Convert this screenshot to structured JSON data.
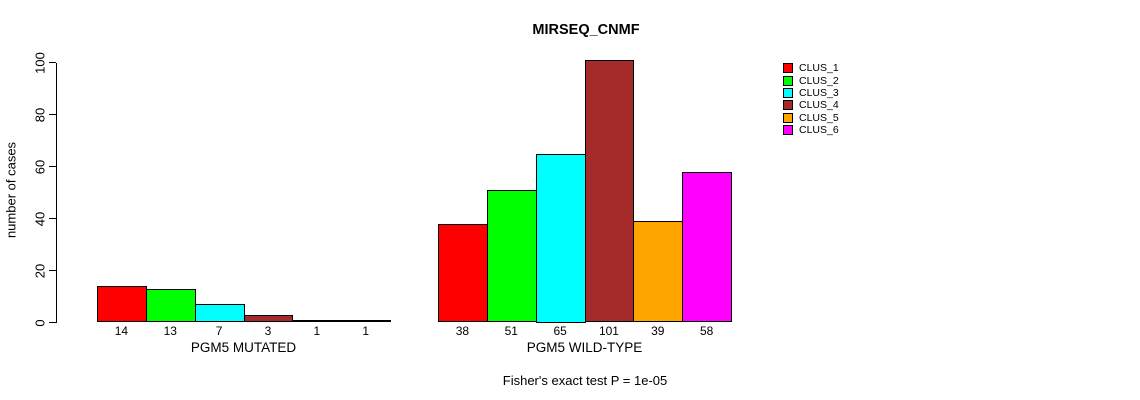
{
  "chart_data": {
    "type": "bar",
    "title": "MIRSEQ_CNMF",
    "ylabel": "number of cases",
    "subtitle": "Fisher's exact test P = 1e-05",
    "categories": [
      "PGM5 MUTATED",
      "PGM5 WILD-TYPE"
    ],
    "series": [
      {
        "name": "CLUS_1",
        "color": "#FF0000",
        "values": [
          14,
          38
        ]
      },
      {
        "name": "CLUS_2",
        "color": "#00FF00",
        "values": [
          13,
          51
        ]
      },
      {
        "name": "CLUS_3",
        "color": "#00FFFF",
        "values": [
          7,
          65
        ]
      },
      {
        "name": "CLUS_4",
        "color": "#A52A2A",
        "values": [
          3,
          101
        ]
      },
      {
        "name": "CLUS_5",
        "color": "#FFA500",
        "values": [
          1,
          39
        ]
      },
      {
        "name": "CLUS_6",
        "color": "#FF00FF",
        "values": [
          1,
          58
        ]
      }
    ],
    "bar_value_labels": {
      "PGM5 MUTATED": [
        14,
        13,
        7,
        3,
        1,
        1
      ],
      "PGM5 WILD-TYPE": [
        38,
        51,
        65,
        101,
        39,
        58
      ]
    },
    "ylim": [
      0,
      100
    ],
    "yticks": [
      0,
      20,
      40,
      60,
      80,
      100
    ],
    "grid": false,
    "legend_position": "right",
    "axis_color": "#000000",
    "background_color": "#FFFFFF"
  }
}
